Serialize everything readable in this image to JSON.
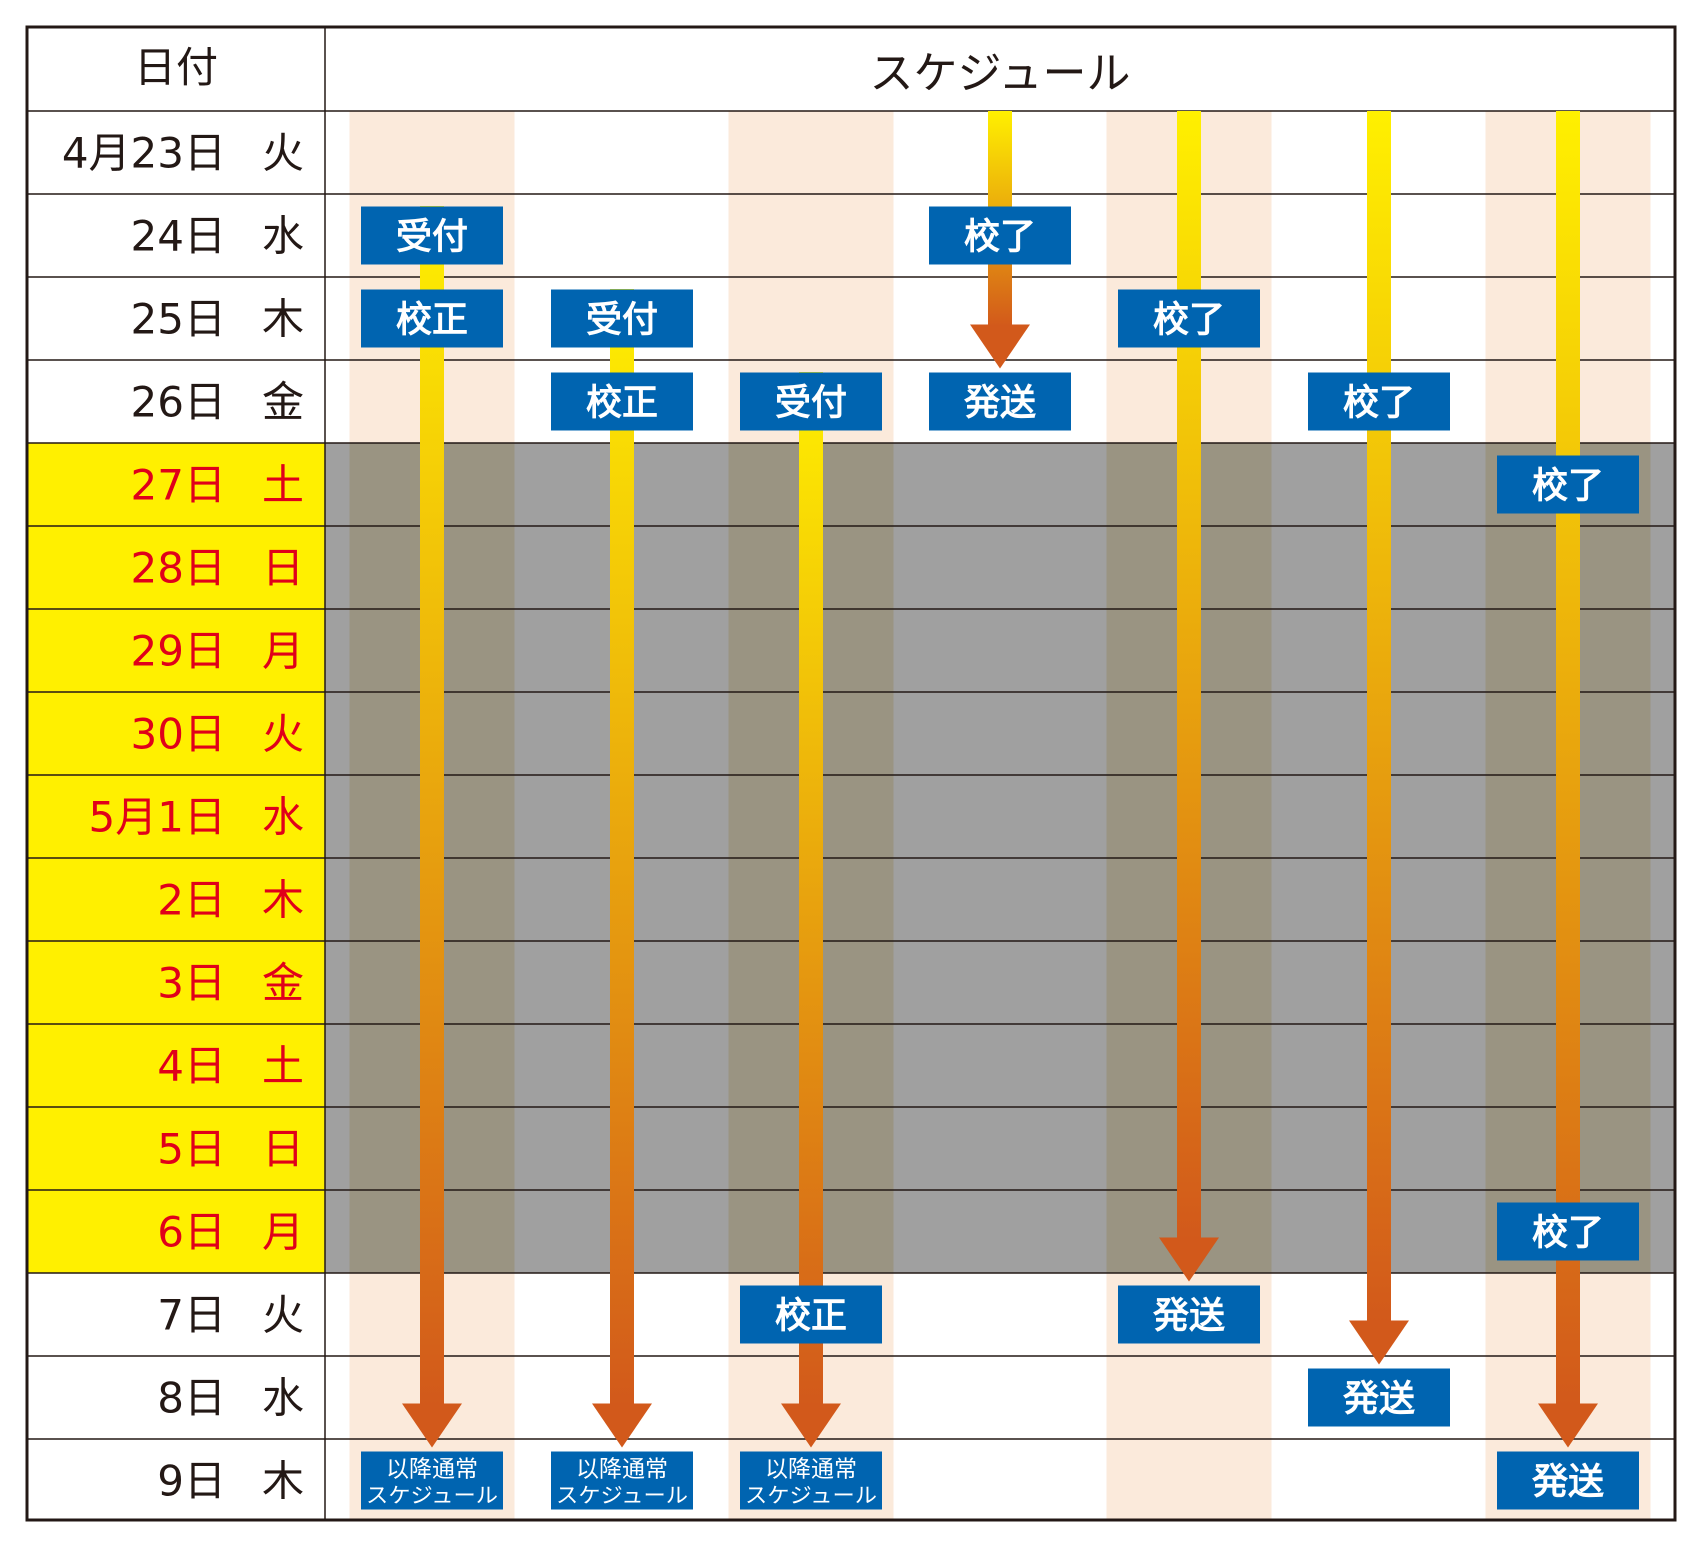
{
  "header": {
    "date_col": "日付",
    "schedule_col": "スケジュール"
  },
  "rows": [
    {
      "date": "4月23日",
      "weekday": "火",
      "holiday": false
    },
    {
      "date": "24日",
      "weekday": "水",
      "holiday": false
    },
    {
      "date": "25日",
      "weekday": "木",
      "holiday": false
    },
    {
      "date": "26日",
      "weekday": "金",
      "holiday": false
    },
    {
      "date": "27日",
      "weekday": "土",
      "holiday": true
    },
    {
      "date": "28日",
      "weekday": "日",
      "holiday": true
    },
    {
      "date": "29日",
      "weekday": "月",
      "holiday": true
    },
    {
      "date": "30日",
      "weekday": "火",
      "holiday": true
    },
    {
      "date": "5月1日",
      "weekday": "水",
      "holiday": true
    },
    {
      "date": "2日",
      "weekday": "木",
      "holiday": true
    },
    {
      "date": "3日",
      "weekday": "金",
      "holiday": true
    },
    {
      "date": "4日",
      "weekday": "土",
      "holiday": true
    },
    {
      "date": "5日",
      "weekday": "日",
      "holiday": true
    },
    {
      "date": "6日",
      "weekday": "月",
      "holiday": true
    },
    {
      "date": "7日",
      "weekday": "火",
      "holiday": false
    },
    {
      "date": "8日",
      "weekday": "水",
      "holiday": false
    },
    {
      "date": "9日",
      "weekday": "木",
      "holiday": false
    }
  ],
  "tracks": [
    {
      "arrow_from_row": 1,
      "arrow_to_row": 16,
      "labels": [
        {
          "row": 1,
          "text": "受付"
        },
        {
          "row": 2,
          "text": "校正"
        },
        {
          "row": 16,
          "lines": [
            "以降通常",
            "スケジュール"
          ]
        }
      ]
    },
    {
      "arrow_from_row": 2,
      "arrow_to_row": 16,
      "labels": [
        {
          "row": 2,
          "text": "受付"
        },
        {
          "row": 3,
          "text": "校正"
        },
        {
          "row": 16,
          "lines": [
            "以降通常",
            "スケジュール"
          ]
        }
      ]
    },
    {
      "arrow_from_row": 3,
      "arrow_to_row": 16,
      "labels": [
        {
          "row": 3,
          "text": "受付"
        },
        {
          "row": 14,
          "text": "校正"
        },
        {
          "row": 16,
          "lines": [
            "以降通常",
            "スケジュール"
          ]
        }
      ]
    },
    {
      "arrow_from_row": 0,
      "arrow_to_row": 3,
      "labels": [
        {
          "row": 1,
          "text": "校了"
        },
        {
          "row": 3,
          "text": "発送"
        }
      ]
    },
    {
      "arrow_from_row": 0,
      "arrow_to_row": 14,
      "labels": [
        {
          "row": 2,
          "text": "校了"
        },
        {
          "row": 14,
          "text": "発送"
        }
      ]
    },
    {
      "arrow_from_row": 0,
      "arrow_to_row": 15,
      "labels": [
        {
          "row": 3,
          "text": "校了"
        },
        {
          "row": 15,
          "text": "発送"
        }
      ]
    },
    {
      "arrow_from_row": 0,
      "arrow_to_row": 16,
      "labels": [
        {
          "row": 4,
          "text": "校了"
        },
        {
          "row": 13,
          "text": "校了"
        },
        {
          "row": 16,
          "text": "発送"
        }
      ]
    }
  ],
  "colors": {
    "label_bg": "#0064b0",
    "label_text": "#ffffff",
    "holiday_date_bg": "#fff000",
    "holiday_date_text": "#e0001a",
    "holiday_band": "#a0a0a0",
    "holiday_band_stripe": "#9a9482",
    "stripe": "#fbeadb",
    "arrow_top": "#fff000",
    "arrow_bottom": "#d2591b"
  }
}
